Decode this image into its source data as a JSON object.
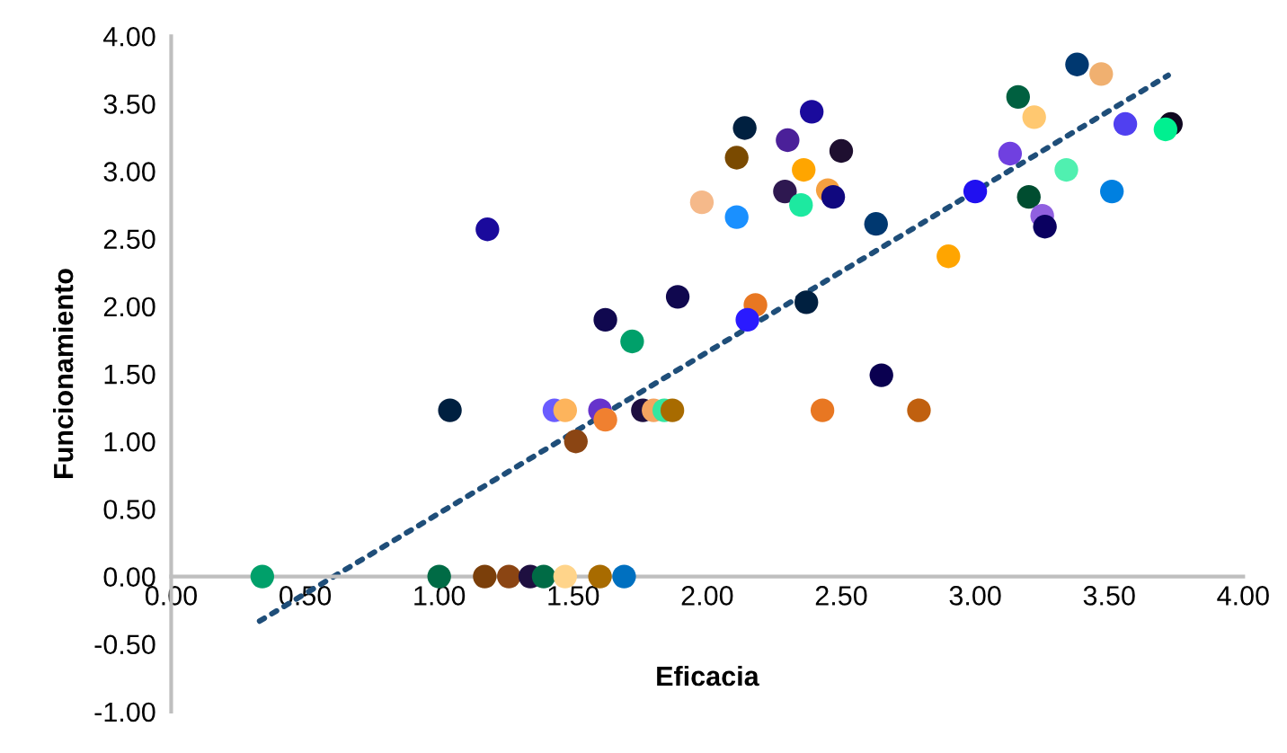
{
  "chart_data": {
    "type": "scatter",
    "xlabel": "Eficacia",
    "ylabel": "Funcionamiento",
    "xlim": [
      0,
      4
    ],
    "ylim": [
      -1,
      4
    ],
    "xticks": [
      {
        "value": 0,
        "label": "0.00"
      },
      {
        "value": 0.5,
        "label": "0.50"
      },
      {
        "value": 1,
        "label": "1.00"
      },
      {
        "value": 1.5,
        "label": "1.50"
      },
      {
        "value": 2,
        "label": "2.00"
      },
      {
        "value": 2.5,
        "label": "2.50"
      },
      {
        "value": 3,
        "label": "3.00"
      },
      {
        "value": 3.5,
        "label": "3.50"
      },
      {
        "value": 4,
        "label": "4.00"
      }
    ],
    "yticks": [
      {
        "value": -1,
        "label": "-1.00"
      },
      {
        "value": -0.5,
        "label": "-0.50"
      },
      {
        "value": 0,
        "label": "0.00"
      },
      {
        "value": 0.5,
        "label": "0.50"
      },
      {
        "value": 1,
        "label": "1.00"
      },
      {
        "value": 1.5,
        "label": "1.50"
      },
      {
        "value": 2,
        "label": "2.00"
      },
      {
        "value": 2.5,
        "label": "2.50"
      },
      {
        "value": 3,
        "label": "3.00"
      },
      {
        "value": 3.5,
        "label": "3.50"
      },
      {
        "value": 4,
        "label": "4.00"
      }
    ],
    "grid": false,
    "legend": false,
    "series": [
      {
        "marker": "circle",
        "x": [
          0.34,
          1.0,
          1.17,
          1.26,
          1.34,
          1.39,
          1.47,
          1.6,
          1.69,
          1.04,
          1.43,
          1.47,
          1.6,
          1.62,
          1.51,
          1.76,
          1.8,
          1.84,
          1.87,
          2.43,
          2.65,
          2.79,
          1.18,
          1.62,
          1.72,
          1.89,
          1.98,
          2.11,
          2.11,
          2.14,
          2.39,
          2.3,
          2.5,
          2.36,
          2.29,
          2.45,
          2.47,
          2.35,
          2.63,
          2.37,
          2.18,
          2.15,
          2.9,
          3.0,
          3.13,
          3.16,
          3.22,
          3.2,
          3.25,
          3.26,
          3.34,
          3.38,
          3.47,
          3.51,
          3.56,
          3.73,
          3.71
        ],
        "values": [
          0,
          0,
          0,
          0,
          0,
          0,
          0,
          0,
          0,
          1.23,
          1.23,
          1.23,
          1.23,
          1.16,
          1.0,
          1.23,
          1.23,
          1.23,
          1.23,
          1.23,
          1.49,
          1.23,
          2.57,
          1.9,
          1.74,
          2.07,
          2.77,
          2.66,
          3.1,
          3.32,
          3.44,
          3.23,
          3.15,
          3.01,
          2.85,
          2.86,
          2.81,
          2.75,
          2.61,
          2.03,
          2.01,
          1.9,
          2.37,
          2.85,
          3.13,
          3.55,
          3.4,
          2.81,
          2.67,
          2.59,
          3.01,
          3.79,
          3.72,
          2.85,
          3.35,
          3.35,
          3.31
        ],
        "colors": [
          "#00a06a",
          "#006b45",
          "#7b3f0a",
          "#8b4513",
          "#1e0f40",
          "#006b45",
          "#ffd48a",
          "#a86b00",
          "#0070c0",
          "#002040",
          "#6a5cff",
          "#fdb45c",
          "#6633cc",
          "#f08030",
          "#8b4513",
          "#1e0f40",
          "#f4a460",
          "#33e6a0",
          "#a86b00",
          "#e87722",
          "#0a0050",
          "#c0600f",
          "#1a0a9c",
          "#10084f",
          "#00a06a",
          "#10084f",
          "#f5b98a",
          "#1a90ff",
          "#7a4a00",
          "#002040",
          "#1a0a9c",
          "#4b2099",
          "#1e0f30",
          "#ffa500",
          "#2e1850",
          "#f5a040",
          "#10087f",
          "#1de9a0",
          "#003870",
          "#002040",
          "#e87722",
          "#2a1aff",
          "#ffa500",
          "#2010f0",
          "#7040e0",
          "#006040",
          "#ffc870",
          "#004d30",
          "#9060e0",
          "#0a0060",
          "#50f0b0",
          "#003870",
          "#f0b070",
          "#0080e0",
          "#5040f0",
          "#100820",
          "#00f090"
        ]
      },
      {
        "type": "line",
        "x": [
          0.33,
          3.72
        ],
        "values": [
          -0.33,
          3.71
        ],
        "color": "#1f4e79",
        "line_style": "dotted",
        "marker": "none"
      }
    ]
  }
}
